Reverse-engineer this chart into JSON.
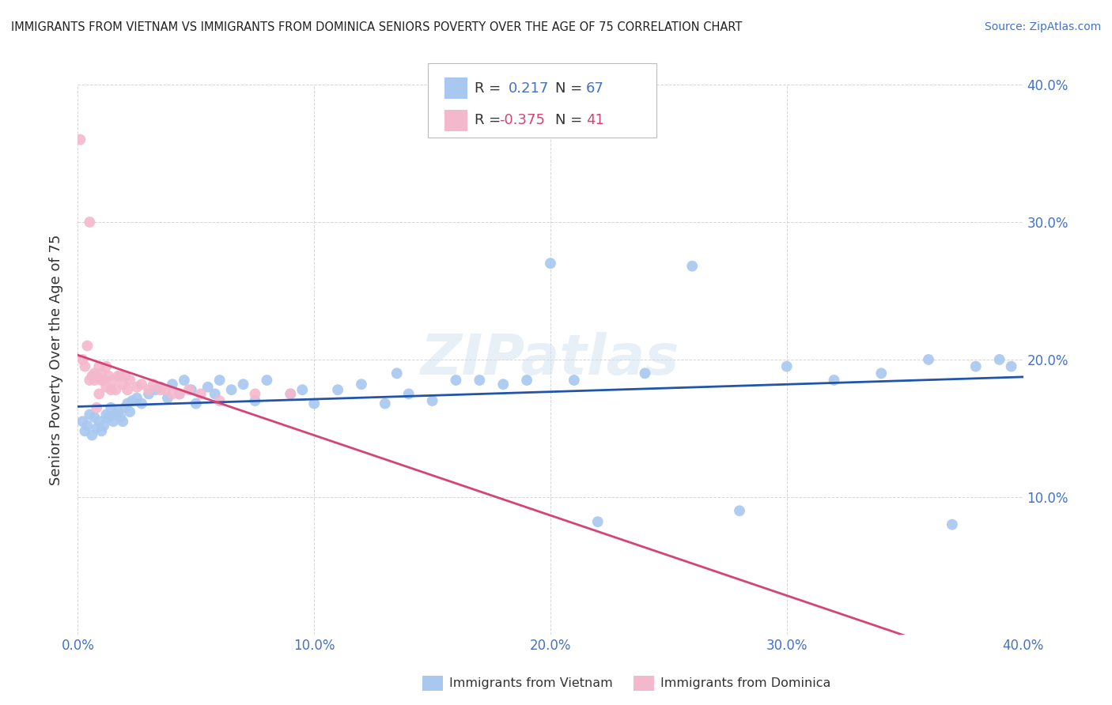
{
  "title": "IMMIGRANTS FROM VIETNAM VS IMMIGRANTS FROM DOMINICA SENIORS POVERTY OVER THE AGE OF 75 CORRELATION CHART",
  "source": "Source: ZipAtlas.com",
  "ylabel": "Seniors Poverty Over the Age of 75",
  "xlim": [
    0.0,
    0.4
  ],
  "ylim": [
    0.0,
    0.4
  ],
  "xticks": [
    0.0,
    0.1,
    0.2,
    0.3,
    0.4
  ],
  "yticks": [
    0.1,
    0.2,
    0.3,
    0.4
  ],
  "xticklabels": [
    "0.0%",
    "10.0%",
    "20.0%",
    "30.0%",
    "40.0%"
  ],
  "yticklabels": [
    "10.0%",
    "20.0%",
    "30.0%",
    "40.0%"
  ],
  "tick_color": "#4472c4",
  "vietnam_color": "#a8c8f0",
  "dominica_color": "#f4b8cc",
  "vietnam_line_color": "#2255aa",
  "dominica_line_color": "#d44477",
  "R_vietnam": 0.217,
  "N_vietnam": 67,
  "R_dominica": -0.375,
  "N_dominica": 41,
  "background_color": "#ffffff",
  "watermark": "ZIPatlas",
  "vietnam_x": [
    0.002,
    0.003,
    0.004,
    0.005,
    0.006,
    0.007,
    0.008,
    0.009,
    0.01,
    0.011,
    0.012,
    0.013,
    0.014,
    0.015,
    0.016,
    0.017,
    0.018,
    0.019,
    0.02,
    0.021,
    0.022,
    0.023,
    0.025,
    0.027,
    0.03,
    0.033,
    0.035,
    0.038,
    0.04,
    0.043,
    0.045,
    0.048,
    0.05,
    0.055,
    0.058,
    0.06,
    0.065,
    0.07,
    0.075,
    0.08,
    0.09,
    0.095,
    0.1,
    0.11,
    0.12,
    0.13,
    0.135,
    0.14,
    0.15,
    0.16,
    0.17,
    0.18,
    0.19,
    0.2,
    0.21,
    0.22,
    0.24,
    0.26,
    0.28,
    0.3,
    0.32,
    0.34,
    0.36,
    0.37,
    0.38,
    0.39,
    0.395
  ],
  "vietnam_y": [
    0.155,
    0.148,
    0.152,
    0.16,
    0.145,
    0.158,
    0.15,
    0.155,
    0.148,
    0.152,
    0.16,
    0.158,
    0.165,
    0.155,
    0.16,
    0.162,
    0.158,
    0.155,
    0.165,
    0.168,
    0.162,
    0.17,
    0.172,
    0.168,
    0.175,
    0.178,
    0.18,
    0.172,
    0.182,
    0.175,
    0.185,
    0.178,
    0.168,
    0.18,
    0.175,
    0.185,
    0.178,
    0.182,
    0.17,
    0.185,
    0.175,
    0.178,
    0.168,
    0.178,
    0.182,
    0.168,
    0.19,
    0.175,
    0.17,
    0.185,
    0.185,
    0.182,
    0.185,
    0.27,
    0.185,
    0.082,
    0.19,
    0.268,
    0.09,
    0.195,
    0.185,
    0.19,
    0.2,
    0.08,
    0.195,
    0.2,
    0.195
  ],
  "dominica_x": [
    0.001,
    0.002,
    0.003,
    0.004,
    0.005,
    0.005,
    0.006,
    0.007,
    0.007,
    0.008,
    0.008,
    0.009,
    0.009,
    0.01,
    0.01,
    0.011,
    0.012,
    0.012,
    0.013,
    0.014,
    0.015,
    0.016,
    0.017,
    0.018,
    0.019,
    0.02,
    0.021,
    0.022,
    0.025,
    0.027,
    0.03,
    0.032,
    0.035,
    0.037,
    0.04,
    0.043,
    0.047,
    0.052,
    0.06,
    0.075,
    0.09
  ],
  "dominica_y": [
    0.36,
    0.2,
    0.195,
    0.21,
    0.3,
    0.185,
    0.188,
    0.19,
    0.185,
    0.165,
    0.188,
    0.195,
    0.175,
    0.19,
    0.185,
    0.185,
    0.195,
    0.18,
    0.188,
    0.178,
    0.185,
    0.178,
    0.188,
    0.188,
    0.182,
    0.188,
    0.178,
    0.185,
    0.18,
    0.182,
    0.178,
    0.182,
    0.178,
    0.178,
    0.175,
    0.175,
    0.178,
    0.175,
    0.17,
    0.175,
    0.175
  ]
}
